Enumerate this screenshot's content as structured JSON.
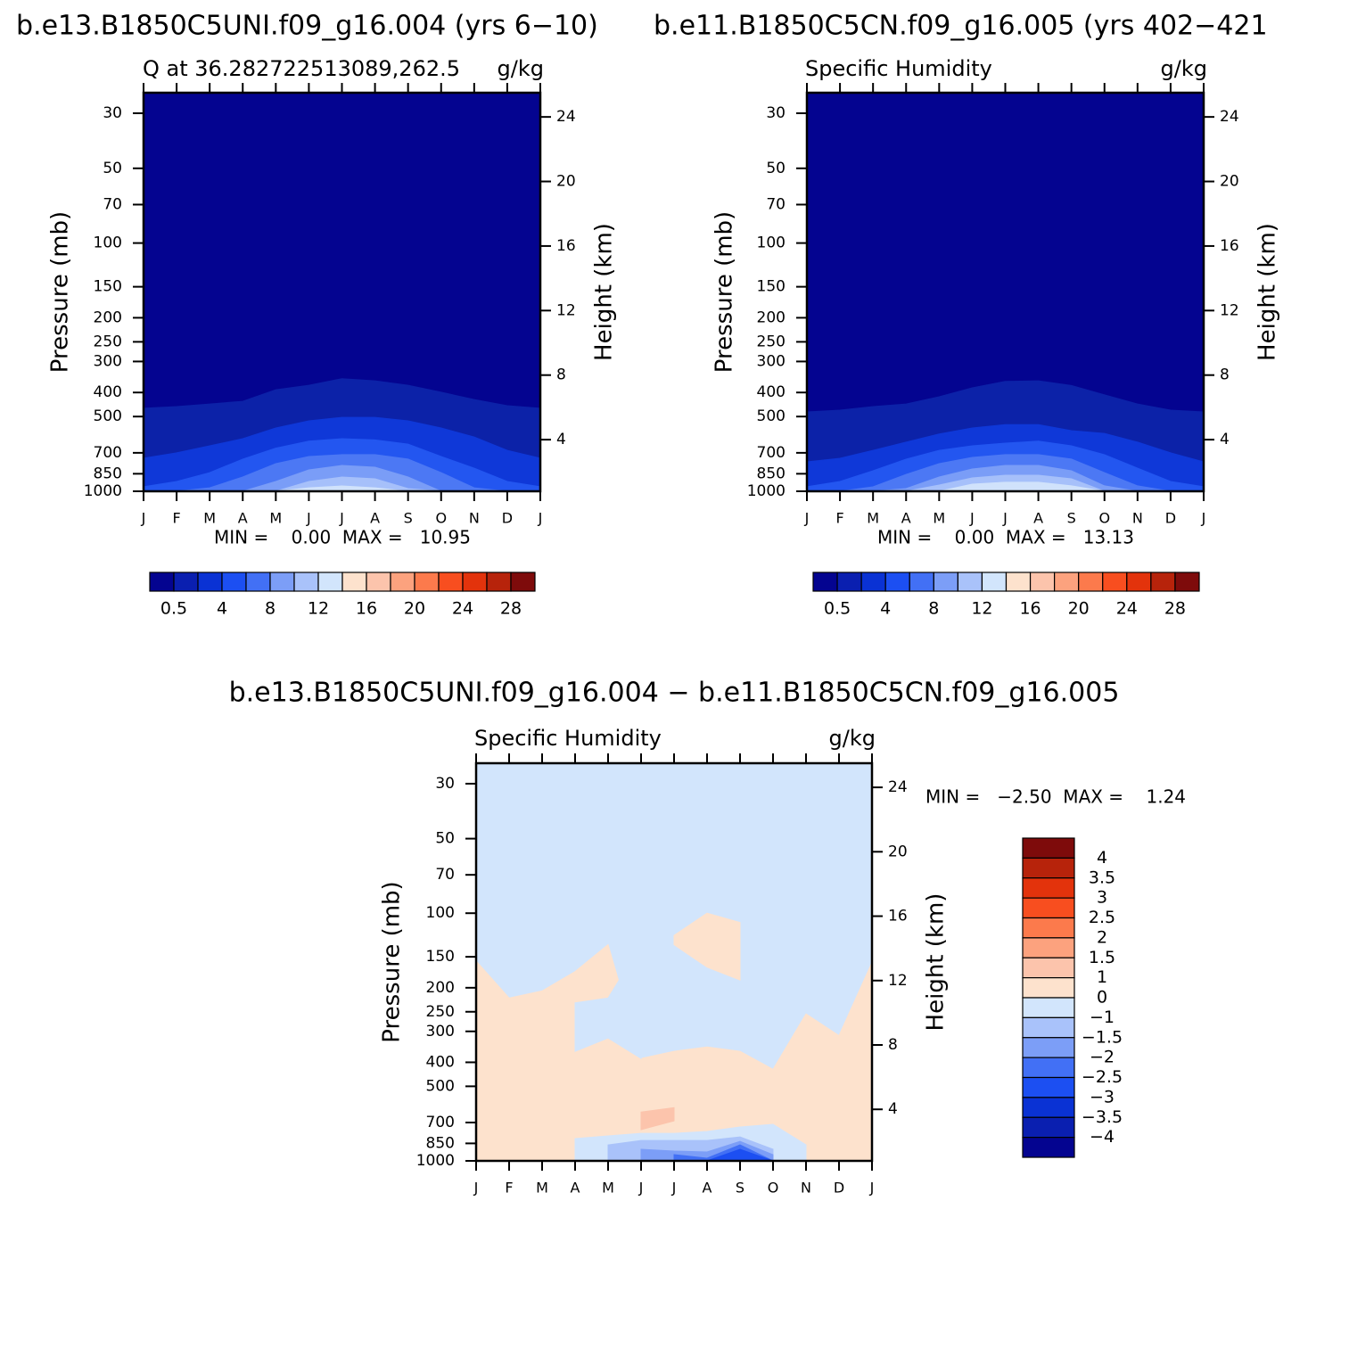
{
  "chart_data": [
    {
      "type": "contour",
      "title": "b.e13.B1850C5UNI.f09_g16.004 (yrs 6−10)",
      "subtitle": "Q at 36.282722513089,262.5",
      "units": "g/kg",
      "ylabel": "Pressure (mb)",
      "y2label": "Height (km)",
      "log_y": true,
      "categories": [
        "J",
        "F",
        "M",
        "A",
        "M",
        "J",
        "J",
        "A",
        "S",
        "O",
        "N",
        "D",
        "J"
      ],
      "ylim": [
        1000,
        24.8
      ],
      "yticks": [
        30,
        50,
        70,
        100,
        150,
        200,
        250,
        300,
        400,
        500,
        700,
        850,
        1000
      ],
      "y2lim": [
        0.8,
        25.5
      ],
      "y2ticks": [
        4,
        8,
        12,
        16,
        20,
        24
      ],
      "background": "#040490",
      "contours": [
        {
          "color": "#0c22a8",
          "values": [
            463,
            456,
            445,
            434,
            390,
            374,
            352,
            359,
            374,
            399,
            427,
            452,
            463
          ]
        },
        {
          "color": "#0f38d8",
          "values": [
            736,
            700,
            656,
            614,
            556,
            520,
            504,
            504,
            520,
            556,
            604,
            684,
            736
          ]
        },
        {
          "color": "#2356f0",
          "values": [
            959,
            913,
            841,
            742,
            670,
            628,
            614,
            621,
            646,
            724,
            807,
            913,
            959
          ]
        },
        {
          "color": "#4c78f4",
          "values": [
            1000,
            1000,
            968,
            876,
            774,
            724,
            712,
            712,
            742,
            841,
            968,
            1000,
            1000
          ]
        },
        {
          "color": "#7a9df7",
          "values": [
            1000,
            1000,
            1000,
            1000,
            913,
            820,
            787,
            800,
            876,
            1000,
            1000,
            1000,
            1000
          ]
        },
        {
          "color": "#a6c0fa",
          "values": [
            1000,
            1000,
            1000,
            1000,
            1000,
            913,
            876,
            891,
            975,
            1000,
            1000,
            1000,
            1000
          ]
        },
        {
          "color": "#d0e2fb",
          "values": [
            1000,
            1000,
            1000,
            1000,
            1000,
            968,
            952,
            968,
            1000,
            1000,
            1000,
            1000,
            1000
          ]
        }
      ],
      "stats": "MIN =    0.00  MAX =   10.95",
      "colorbar": {
        "orientation": "horizontal",
        "colors": [
          "#040490",
          "#0a1fb0",
          "#0a32d4",
          "#1c4ff2",
          "#4270f5",
          "#7c9ef7",
          "#a9c2fa",
          "#d2e5fc",
          "#fde2cd",
          "#fcc4ac",
          "#fca27e",
          "#fc7a4c",
          "#f84e1f",
          "#e3330c",
          "#b7230b",
          "#7e0b0b"
        ],
        "levels": [
          0.5,
          null,
          4,
          null,
          8,
          null,
          12,
          null,
          16,
          null,
          20,
          null,
          24,
          null,
          28
        ]
      }
    },
    {
      "type": "contour",
      "title": "b.e11.B1850C5CN.f09_g16.005 (yrs 402−421",
      "subtitle": "Specific Humidity",
      "units": "g/kg",
      "ylabel": "Pressure (mb)",
      "y2label": "Height (km)",
      "log_y": true,
      "categories": [
        "J",
        "F",
        "M",
        "A",
        "M",
        "J",
        "J",
        "A",
        "S",
        "O",
        "N",
        "D",
        "J"
      ],
      "ylim": [
        1000,
        24.8
      ],
      "yticks": [
        30,
        50,
        70,
        100,
        150,
        200,
        250,
        300,
        400,
        500,
        700,
        850,
        1000
      ],
      "y2lim": [
        0.8,
        25.5
      ],
      "y2ticks": [
        4,
        8,
        12,
        16,
        20,
        24
      ],
      "background": "#040490",
      "contours": [
        {
          "color": "#0c22a8",
          "values": [
            479,
            471,
            456,
            445,
            416,
            383,
            361,
            359,
            375,
            409,
            445,
            471,
            479
          ]
        },
        {
          "color": "#0f38d8",
          "values": [
            761,
            736,
            684,
            634,
            588,
            556,
            539,
            539,
            570,
            585,
            634,
            700,
            761
          ]
        },
        {
          "color": "#2356f0",
          "values": [
            959,
            913,
            827,
            742,
            684,
            656,
            640,
            628,
            656,
            712,
            807,
            913,
            959
          ]
        },
        {
          "color": "#4c78f4",
          "values": [
            1000,
            1000,
            959,
            855,
            774,
            730,
            712,
            712,
            742,
            841,
            951,
            1000,
            1000
          ]
        },
        {
          "color": "#7a9df7",
          "values": [
            1000,
            1000,
            1000,
            975,
            876,
            813,
            787,
            787,
            827,
            951,
            1000,
            1000,
            1000
          ]
        },
        {
          "color": "#a6c0fa",
          "values": [
            1000,
            1000,
            1000,
            1000,
            944,
            883,
            862,
            862,
            891,
            1000,
            1000,
            1000,
            1000
          ]
        },
        {
          "color": "#d0e2fb",
          "values": [
            1000,
            1000,
            1000,
            1000,
            1000,
            936,
            920,
            920,
            951,
            1000,
            1000,
            1000,
            1000
          ]
        }
      ],
      "stats": "MIN =    0.00  MAX =   13.13",
      "colorbar": {
        "orientation": "horizontal",
        "colors": [
          "#040490",
          "#0a1fb0",
          "#0a32d4",
          "#1c4ff2",
          "#4270f5",
          "#7c9ef7",
          "#a9c2fa",
          "#d2e5fc",
          "#fde2cd",
          "#fcc4ac",
          "#fca27e",
          "#fc7a4c",
          "#f84e1f",
          "#e3330c",
          "#b7230b",
          "#7e0b0b"
        ],
        "levels": [
          0.5,
          null,
          4,
          null,
          8,
          null,
          12,
          null,
          16,
          null,
          20,
          null,
          24,
          null,
          28
        ]
      }
    },
    {
      "type": "contour",
      "title": "b.e13.B1850C5UNI.f09_g16.004 − b.e11.B1850C5CN.f09_g16.005",
      "subtitle": "Specific Humidity",
      "units": "g/kg",
      "ylabel": "Pressure (mb)",
      "y2label": "Height (km)",
      "log_y": true,
      "categories": [
        "J",
        "F",
        "M",
        "A",
        "M",
        "J",
        "J",
        "A",
        "S",
        "O",
        "N",
        "D",
        "J"
      ],
      "ylim": [
        1000,
        24.8
      ],
      "yticks": [
        30,
        50,
        70,
        100,
        150,
        200,
        250,
        300,
        400,
        500,
        700,
        850,
        1000
      ],
      "y2lim": [
        0.8,
        25.5
      ],
      "y2ticks": [
        4,
        8,
        12,
        16,
        20,
        24
      ],
      "background": "#d2e5fc",
      "contours": [
        {
          "color": "#fde2cd",
          "values": [
            156,
            220,
            206,
            172,
            134,
            386,
            361,
            347,
            361,
            427,
            255,
            312,
            158
          ]
        },
        {
          "color": "#d2e5fc",
          "values": [
            null,
            null,
            null,
            230,
            220,
            134,
            null,
            null,
            null,
            null,
            null,
            null,
            null
          ],
          "bottom": [
            null,
            null,
            null,
            361,
            319,
            386,
            null,
            null,
            null,
            null,
            null,
            null,
            null
          ]
        },
        {
          "color": "#fde2cd",
          "values": [
            null,
            null,
            null,
            null,
            null,
            null,
            123,
            100,
            109,
            null,
            null,
            null,
            null
          ],
          "bottom": [
            null,
            null,
            null,
            null,
            null,
            null,
            134,
            165,
            186,
            null,
            null,
            null,
            null
          ]
        },
        {
          "color": "#fcc4ac",
          "values": [
            null,
            null,
            null,
            null,
            null,
            635,
            610,
            null,
            null,
            null,
            null,
            null,
            null
          ],
          "bottom": [
            null,
            null,
            null,
            null,
            null,
            748,
            689,
            null,
            null,
            null,
            null,
            null,
            null
          ]
        },
        {
          "color": "#d2e5fc",
          "values": [
            null,
            null,
            null,
            813,
            793,
            774,
            774,
            761,
            730,
            712,
            862,
            null,
            null
          ]
        },
        {
          "color": "#a9c2fa",
          "values": [
            null,
            null,
            null,
            null,
            862,
            827,
            827,
            827,
            800,
            898,
            null,
            null,
            null
          ]
        },
        {
          "color": "#7c9ef7",
          "values": [
            null,
            null,
            null,
            null,
            null,
            898,
            913,
            920,
            834,
            944,
            null,
            null,
            null
          ]
        },
        {
          "color": "#4270f5",
          "values": [
            null,
            null,
            null,
            null,
            null,
            null,
            944,
            975,
            862,
            1000,
            null,
            null,
            null
          ]
        },
        {
          "color": "#1c4ff2",
          "values": [
            null,
            null,
            null,
            null,
            null,
            null,
            null,
            1000,
            898,
            1000,
            null,
            null,
            null
          ]
        }
      ],
      "stats": "MIN =   −2.50  MAX =    1.24",
      "colorbar": {
        "orientation": "vertical",
        "colors": [
          "#7e0b0b",
          "#b7230b",
          "#e3330c",
          "#f84e1f",
          "#fc7a4c",
          "#fca27e",
          "#fcc4ac",
          "#fde2cd",
          "#d2e5fc",
          "#a9c2fa",
          "#7c9ef7",
          "#4270f5",
          "#1c4ff2",
          "#0a32d4",
          "#0a1fb0",
          "#040490"
        ],
        "levels": [
          4,
          3.5,
          3,
          2.5,
          2,
          1.5,
          1,
          0,
          {
            "value": -1,
            "label": "−1"
          },
          {
            "value": -1.5,
            "label": "−1.5"
          },
          {
            "value": -2,
            "label": "−2"
          },
          {
            "value": -2.5,
            "label": "−2.5"
          },
          {
            "value": -3,
            "label": "−3"
          },
          {
            "value": -3.5,
            "label": "−3.5"
          },
          {
            "value": -4,
            "label": "−4"
          }
        ]
      }
    }
  ]
}
